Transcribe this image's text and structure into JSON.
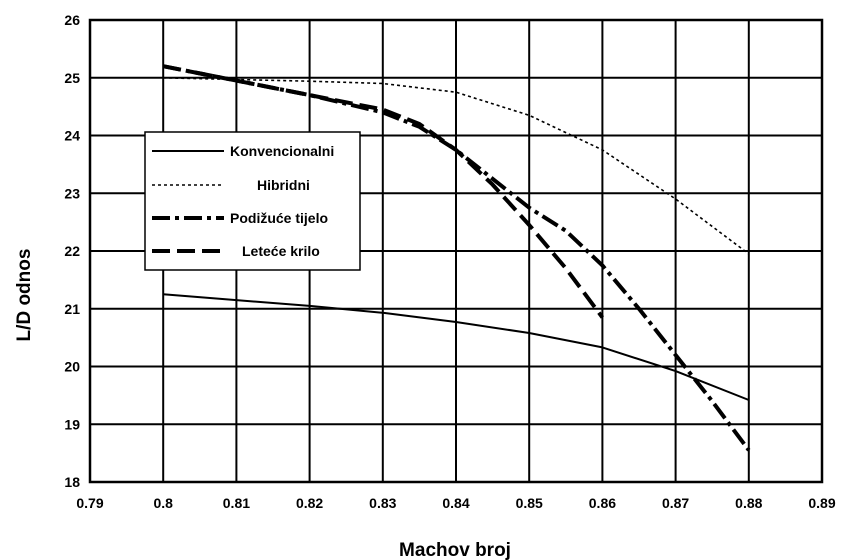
{
  "chart_data": {
    "type": "line",
    "title": "",
    "xlabel": "Machov broj",
    "ylabel": "L/D odnos",
    "xlim": [
      0.79,
      0.89
    ],
    "ylim": [
      18,
      26
    ],
    "x_ticks": [
      "0.79",
      "0.8",
      "0.81",
      "0.82",
      "0.83",
      "0.84",
      "0.85",
      "0.86",
      "0.87",
      "0.88",
      "0.89"
    ],
    "y_ticks": [
      "18",
      "19",
      "20",
      "21",
      "22",
      "23",
      "24",
      "25",
      "26"
    ],
    "grid": true,
    "legend_position": "left-middle",
    "series": [
      {
        "name": "Konvencionalni",
        "style": "solid",
        "color": "#000000",
        "points": [
          [
            0.8,
            21.25
          ],
          [
            0.81,
            21.15
          ],
          [
            0.82,
            21.05
          ],
          [
            0.83,
            20.93
          ],
          [
            0.84,
            20.77
          ],
          [
            0.85,
            20.58
          ],
          [
            0.86,
            20.33
          ],
          [
            0.87,
            19.92
          ],
          [
            0.88,
            19.42
          ]
        ]
      },
      {
        "name": "Hibridni",
        "style": "dotted",
        "color": "#000000",
        "points": [
          [
            0.8,
            25.0
          ],
          [
            0.81,
            24.97
          ],
          [
            0.82,
            24.94
          ],
          [
            0.83,
            24.9
          ],
          [
            0.84,
            24.75
          ],
          [
            0.85,
            24.35
          ],
          [
            0.86,
            23.75
          ],
          [
            0.87,
            22.9
          ],
          [
            0.88,
            21.95
          ]
        ]
      },
      {
        "name": "Podižuće tijelo",
        "style": "dash-dot",
        "color": "#000000",
        "points": [
          [
            0.8,
            25.2
          ],
          [
            0.81,
            24.95
          ],
          [
            0.82,
            24.7
          ],
          [
            0.83,
            24.4
          ],
          [
            0.835,
            24.15
          ],
          [
            0.84,
            23.75
          ],
          [
            0.845,
            23.25
          ],
          [
            0.85,
            22.75
          ],
          [
            0.855,
            22.35
          ],
          [
            0.86,
            21.75
          ],
          [
            0.865,
            21.0
          ],
          [
            0.87,
            20.2
          ],
          [
            0.875,
            19.4
          ],
          [
            0.88,
            18.55
          ]
        ]
      },
      {
        "name": "Leteće krilo",
        "style": "dashed",
        "color": "#000000",
        "points": [
          [
            0.8,
            25.2
          ],
          [
            0.81,
            24.95
          ],
          [
            0.82,
            24.7
          ],
          [
            0.83,
            24.45
          ],
          [
            0.835,
            24.2
          ],
          [
            0.84,
            23.75
          ],
          [
            0.845,
            23.15
          ],
          [
            0.85,
            22.45
          ],
          [
            0.855,
            21.7
          ],
          [
            0.86,
            20.85
          ]
        ]
      }
    ]
  }
}
